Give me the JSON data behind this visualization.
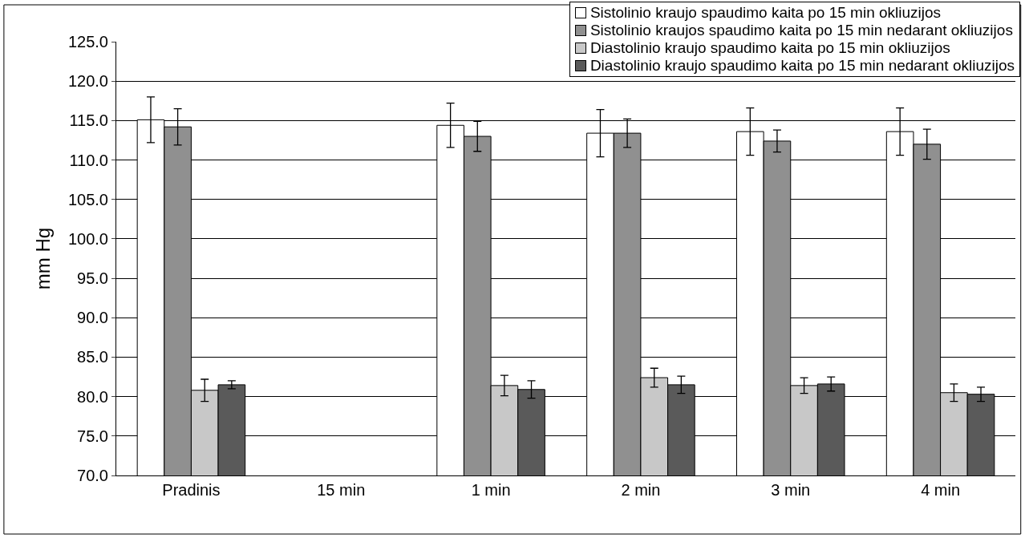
{
  "chart_data": {
    "type": "bar",
    "ylabel": "mm Hg",
    "categories": [
      "Pradinis",
      "15 min",
      "1 min",
      "2 min",
      "3 min",
      "4 min"
    ],
    "series": [
      {
        "name": "Sistolinio kraujo spaudimo kaita po 15 min okliuzijos",
        "color": "#ffffff",
        "values": [
          115.1,
          null,
          114.4,
          113.4,
          113.6,
          113.6
        ],
        "errors": [
          2.9,
          null,
          2.8,
          3.0,
          3.0,
          3.0
        ]
      },
      {
        "name": "Sistolinio kraujos spaudimo kaita po 15 min nedarant okliuzijos",
        "color": "#909090",
        "values": [
          114.2,
          null,
          113.0,
          113.4,
          112.4,
          112.0
        ],
        "errors": [
          2.3,
          null,
          1.9,
          1.8,
          1.4,
          1.9
        ]
      },
      {
        "name": "Diastolinio kraujo spaudimo kaita po 15 min okliuzijos",
        "color": "#c8c8c8",
        "values": [
          80.8,
          null,
          81.4,
          82.4,
          81.4,
          80.5
        ],
        "errors": [
          1.4,
          null,
          1.3,
          1.2,
          1.0,
          1.1
        ]
      },
      {
        "name": "Diastolinio kraujo spaudimo kaita po 15 min nedarant okliuzijos",
        "color": "#5a5a5a",
        "values": [
          81.5,
          null,
          80.9,
          81.5,
          81.6,
          80.3
        ],
        "errors": [
          0.5,
          null,
          1.1,
          1.1,
          0.9,
          0.9
        ]
      }
    ],
    "ylim": [
      70,
      125
    ],
    "yticks": [
      {
        "value": 70,
        "label": "70.0"
      },
      {
        "value": 75,
        "label": "75.0"
      },
      {
        "value": 80,
        "label": "80.0"
      },
      {
        "value": 85,
        "label": "85.0"
      },
      {
        "value": 90,
        "label": "90.0"
      },
      {
        "value": 95,
        "label": "95.0"
      },
      {
        "value": 100,
        "label": "100.0"
      },
      {
        "value": 105,
        "label": "105.0"
      },
      {
        "value": 110,
        "label": "110.0"
      },
      {
        "value": 115,
        "label": "115.0"
      },
      {
        "value": 120,
        "label": "120.0"
      },
      {
        "value": 125,
        "label": "125.0"
      }
    ],
    "grid": "y",
    "legend": "top right"
  }
}
